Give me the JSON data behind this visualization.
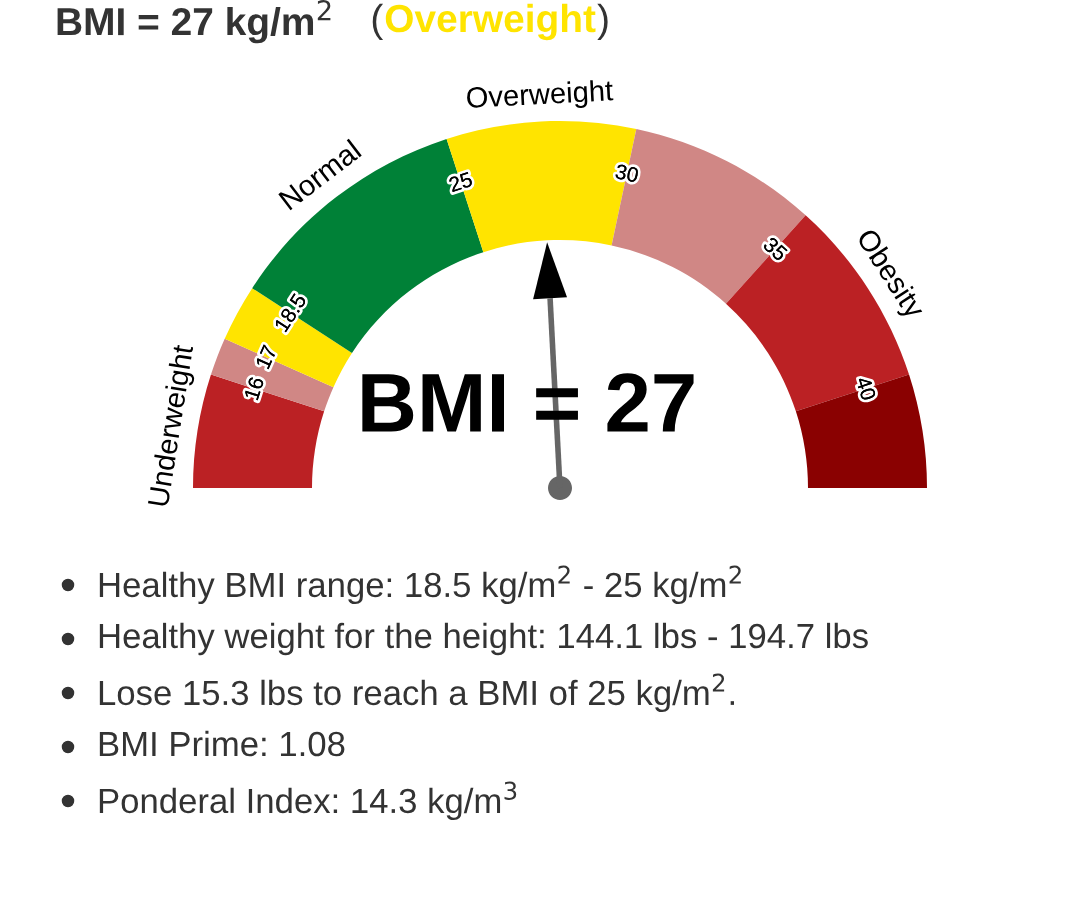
{
  "chart_data": {
    "type": "donut",
    "title": "BMI = 27 kg/m$^{2}$",
    "subtitle": "(Overweight)",
    "categories": [
      "Underweight",
      null,
      null,
      "Normal",
      "Overweight",
      null,
      "Obesity",
      null
    ],
    "values": [
      10,
      3.33,
      5,
      21.67,
      16.67,
      16.67,
      16.66,
      10
    ],
    "colors": [
      "#bb2124",
      "#d08785",
      "#ffe400",
      "#008137",
      "#ffe400",
      "#d08785",
      "#bb2124",
      "#8a0101"
    ],
    "needle": "Overweight",
    "annotations": [
      "16",
      "17",
      "18.5",
      "25",
      "30",
      "35",
      "40",
      "BMI = 27",
      "Healthy BMI range: 18.5 kg/m$^{2}$ - 25 kg/m$^{2}$",
      "Healthy weight for the height: 144.1 lbs - 194.7 lbs",
      "Lose 15.3 lbs to reach a BMI of 25 kg/m$^{2}$.",
      "BMI Prime: 1.08",
      "Ponderal Index: 14.3 kg/m$^{3}$"
    ]
  }
}
